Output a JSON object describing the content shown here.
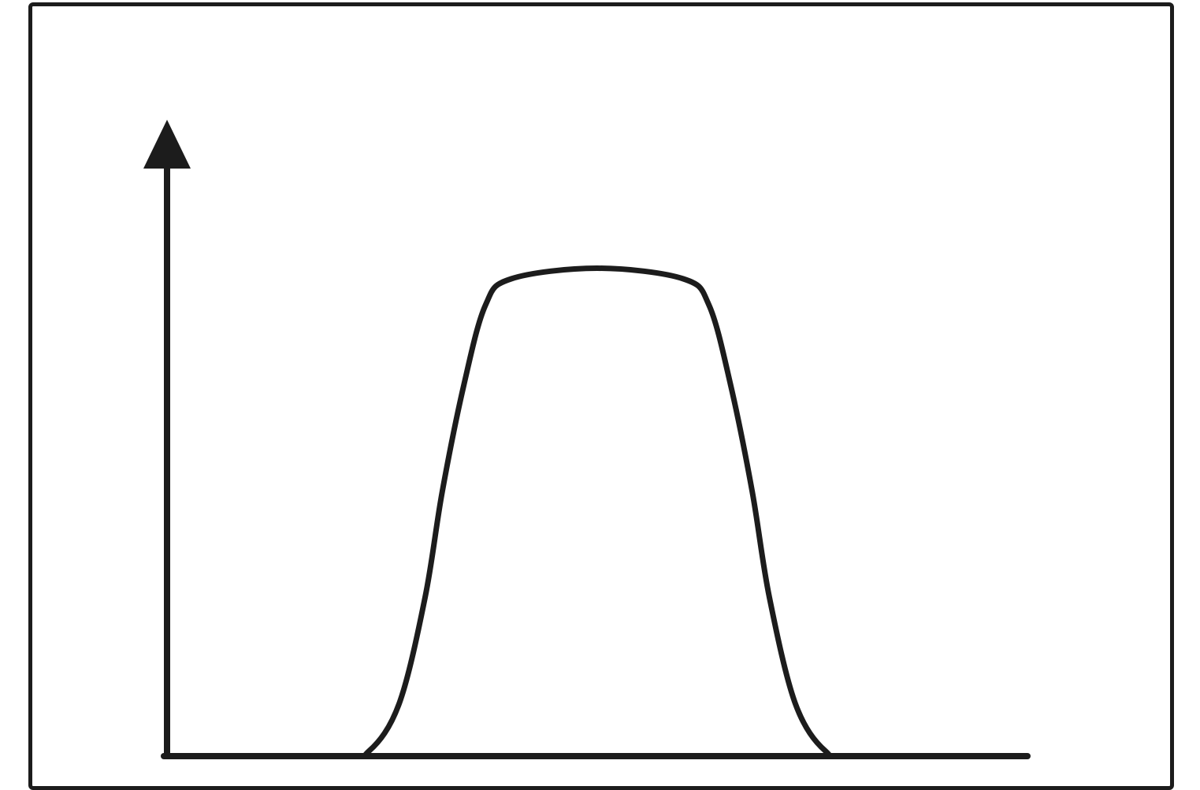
{
  "chart_data": {
    "type": "line",
    "title": "",
    "xlabel": "",
    "ylabel": "",
    "grid": false,
    "x": [
      0,
      0.2,
      0.235,
      0.27,
      0.3,
      0.32,
      0.345,
      0.37,
      0.4,
      0.5,
      0.6,
      0.63,
      0.655,
      0.68,
      0.7,
      0.73,
      0.765,
      0.8,
      1.0
    ],
    "y": [
      0,
      0,
      0.01,
      0.1,
      0.3,
      0.5,
      0.7,
      0.85,
      0.9,
      0.92,
      0.9,
      0.85,
      0.7,
      0.5,
      0.3,
      0.1,
      0.01,
      0,
      0
    ],
    "xlim": [
      0,
      1
    ],
    "ylim": [
      0,
      1.2
    ],
    "colors": {
      "stroke": "#1c1c1c",
      "background": "#ffffff"
    }
  }
}
